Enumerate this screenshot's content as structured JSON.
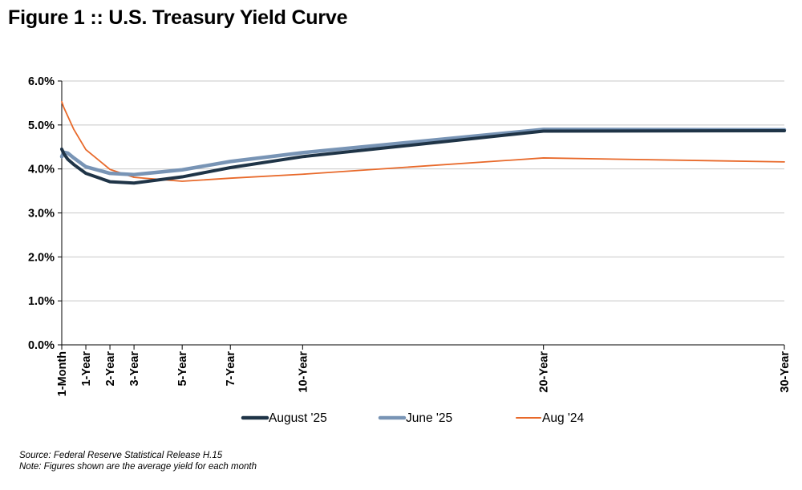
{
  "figure_title": "Figure 1 :: U.S. Treasury Yield Curve",
  "notes": {
    "source": "Source: Federal Reserve Statistical Release H.15",
    "note": "Note: Figures shown are the average yield for each month"
  },
  "chart_data": {
    "type": "line",
    "title": "Figure 1 :: U.S. Treasury Yield Curve",
    "xlabel": "",
    "ylabel": "",
    "x_unit": "years to maturity",
    "ylim": [
      0,
      6
    ],
    "xlim": [
      0,
      30
    ],
    "grid": true,
    "legend_position": "bottom",
    "yticks": [
      {
        "value": 0,
        "label": "0.0%"
      },
      {
        "value": 1,
        "label": "1.0%"
      },
      {
        "value": 2,
        "label": "2.0%"
      },
      {
        "value": 3,
        "label": "3.0%"
      },
      {
        "value": 4,
        "label": "4.0%"
      },
      {
        "value": 5,
        "label": "5.0%"
      },
      {
        "value": 6,
        "label": "6.0%"
      }
    ],
    "categories": [
      "1-Month",
      "1-Year",
      "2-Year",
      "3-Year",
      "5-Year",
      "7-Year",
      "10-Year",
      "20-Year",
      "30-Year"
    ],
    "category_maturities": [
      0,
      1,
      2,
      3,
      5,
      7,
      10,
      20,
      30
    ],
    "series": [
      {
        "name": "August '25",
        "color": "#1f3447",
        "x": [
          0,
          0.083,
          0.25,
          0.5,
          1,
          2,
          3,
          5,
          7,
          10,
          20,
          30
        ],
        "values": [
          4.45,
          4.35,
          4.22,
          4.1,
          3.9,
          3.71,
          3.68,
          3.82,
          4.03,
          4.28,
          4.86,
          4.87
        ]
      },
      {
        "name": "June '25",
        "color": "#7894b5",
        "x": [
          0,
          0.083,
          0.25,
          0.5,
          1,
          2,
          3,
          5,
          7,
          10,
          20,
          30
        ],
        "values": [
          4.28,
          4.38,
          4.36,
          4.25,
          4.05,
          3.9,
          3.87,
          3.98,
          4.17,
          4.37,
          4.9,
          4.89
        ]
      },
      {
        "name": "Aug '24",
        "color": "#e8692a",
        "x": [
          0,
          0.083,
          0.25,
          0.5,
          1,
          2,
          3,
          5,
          7,
          10,
          20,
          30
        ],
        "values": [
          5.53,
          5.4,
          5.2,
          4.9,
          4.44,
          3.99,
          3.81,
          3.72,
          3.79,
          3.88,
          4.25,
          4.16
        ]
      }
    ]
  }
}
